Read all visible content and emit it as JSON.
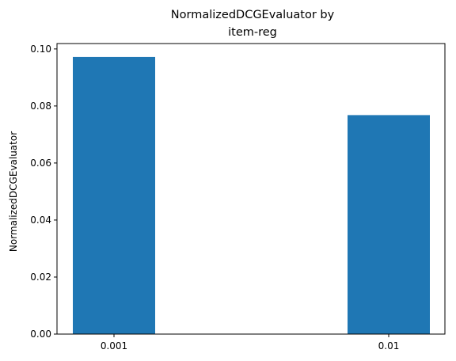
{
  "chart_data": {
    "type": "bar",
    "title": [
      "NormalizedDCGEvaluator by",
      "item-reg"
    ],
    "xlabel": "",
    "ylabel": "NormalizedDCGEvaluator",
    "categories": [
      "0.001",
      "0.01"
    ],
    "values": [
      0.0972,
      0.0768
    ],
    "ylim": [
      0,
      0.1019
    ],
    "yticks": [
      "0.00",
      "0.02",
      "0.04",
      "0.06",
      "0.08",
      "0.10"
    ],
    "ytick_values": [
      0,
      0.02,
      0.04,
      0.06,
      0.08,
      0.1
    ],
    "grid": false,
    "legend": "none",
    "bar_color": "#1f77b4"
  }
}
